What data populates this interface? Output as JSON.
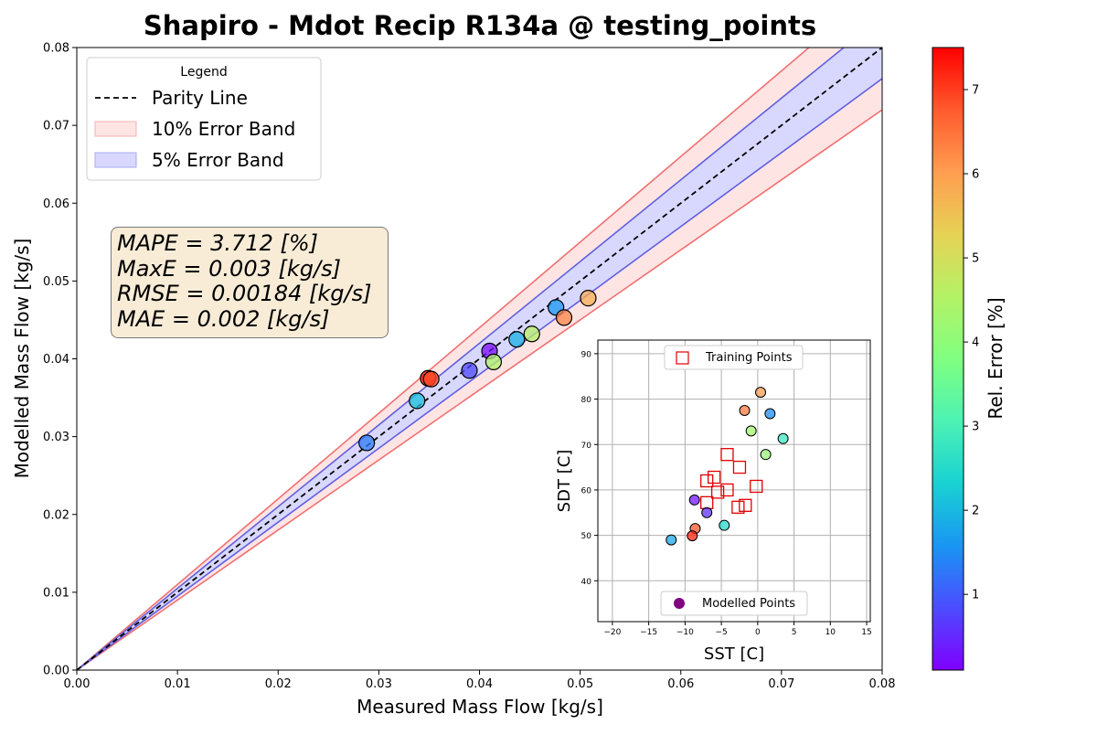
{
  "chart_data": [
    {
      "type": "scatter",
      "title": "Shapiro - Mdot Recip R134a @ testing_points",
      "xlabel": "Measured Mass Flow [kg/s]",
      "ylabel": "Modelled Mass Flow [kg/s]",
      "xlim": [
        0,
        0.08
      ],
      "ylim": [
        0,
        0.08
      ],
      "xticks": [
        "0.00",
        "0.01",
        "0.02",
        "0.03",
        "0.04",
        "0.05",
        "0.06",
        "0.07",
        "0.08"
      ],
      "yticks": [
        "0.00",
        "0.01",
        "0.02",
        "0.03",
        "0.04",
        "0.05",
        "0.06",
        "0.07",
        "0.08"
      ],
      "grid": false,
      "legend": {
        "title": "Legend",
        "placement": "top-left",
        "entries": [
          "Parity Line",
          "10% Error Band",
          "5% Error Band"
        ]
      },
      "bands": [
        {
          "name": "10% Error Band",
          "fraction": 0.1,
          "fill": "#ffe4e4",
          "edge": "#f07070"
        },
        {
          "name": "5% Error Band",
          "fraction": 0.05,
          "fill": "#d8d8ff",
          "edge": "#6060e0"
        }
      ],
      "stats": [
        "MAPE = 3.712 [%]",
        "MaxE = 0.003 [kg/s]",
        "RMSE = 0.00184 [kg/s]",
        "MAE = 0.002 [kg/s]"
      ],
      "points": [
        {
          "x": 0.0288,
          "y": 0.0292,
          "error": 1.3
        },
        {
          "x": 0.0338,
          "y": 0.0346,
          "error": 2.1
        },
        {
          "x": 0.0349,
          "y": 0.0375,
          "error": 7.4
        },
        {
          "x": 0.0352,
          "y": 0.0374,
          "error": 6.9
        },
        {
          "x": 0.039,
          "y": 0.0385,
          "error": 0.8
        },
        {
          "x": 0.041,
          "y": 0.041,
          "error": 0.2
        },
        {
          "x": 0.0414,
          "y": 0.0396,
          "error": 4.5
        },
        {
          "x": 0.0437,
          "y": 0.0425,
          "error": 1.9
        },
        {
          "x": 0.0452,
          "y": 0.0432,
          "error": 4.6
        },
        {
          "x": 0.0476,
          "y": 0.0466,
          "error": 1.6
        },
        {
          "x": 0.0484,
          "y": 0.0453,
          "error": 6.3
        },
        {
          "x": 0.0508,
          "y": 0.0478,
          "error": 5.8
        }
      ]
    },
    {
      "type": "scatter",
      "xlabel": "SST [C]",
      "ylabel": "SDT [C]",
      "xlim": [
        -22,
        15.5
      ],
      "ylim": [
        31,
        93
      ],
      "xticks": [
        -20,
        -15,
        -10,
        -5,
        0,
        5,
        10,
        15
      ],
      "yticks": [
        40,
        50,
        60,
        70,
        80,
        90
      ],
      "grid": true,
      "legend_top": "Training Points",
      "legend_bottom": "Modelled Points",
      "training_points": [
        {
          "x": -4.2,
          "y": 67.8
        },
        {
          "x": -2.5,
          "y": 65.0
        },
        {
          "x": -6.0,
          "y": 62.8
        },
        {
          "x": -7.0,
          "y": 62.0
        },
        {
          "x": -5.5,
          "y": 59.5
        },
        {
          "x": -4.2,
          "y": 60.0
        },
        {
          "x": -0.2,
          "y": 60.8
        },
        {
          "x": -7.0,
          "y": 57.2
        },
        {
          "x": -1.7,
          "y": 56.6
        },
        {
          "x": -2.7,
          "y": 56.2
        }
      ],
      "modelled_points": [
        {
          "x": 0.4,
          "y": 81.5,
          "error": 6.0
        },
        {
          "x": -1.8,
          "y": 77.5,
          "error": 6.4
        },
        {
          "x": 1.7,
          "y": 76.8,
          "error": 1.5
        },
        {
          "x": -0.9,
          "y": 73.0,
          "error": 4.3
        },
        {
          "x": 3.5,
          "y": 71.3,
          "error": 2.8
        },
        {
          "x": 1.1,
          "y": 67.8,
          "error": 4.1
        },
        {
          "x": -8.7,
          "y": 57.8,
          "error": 0.3
        },
        {
          "x": -7.0,
          "y": 55.0,
          "error": 0.6
        },
        {
          "x": -4.6,
          "y": 52.2,
          "error": 2.5
        },
        {
          "x": -8.6,
          "y": 51.5,
          "error": 6.8
        },
        {
          "x": -9.0,
          "y": 49.9,
          "error": 7.2
        },
        {
          "x": -11.9,
          "y": 49.0,
          "error": 1.8
        }
      ]
    },
    {
      "type": "colorbar",
      "label": "Rel. Error [%]",
      "range": [
        0.1,
        7.5
      ],
      "ticks": [
        1,
        2,
        3,
        4,
        5,
        6,
        7
      ],
      "colormap": [
        "#8000ff",
        "#4c4cff",
        "#1996f3",
        "#19d2d2",
        "#4cf2b4",
        "#80ff80",
        "#b4f266",
        "#e6d255",
        "#ff9d50",
        "#ff5a2d",
        "#ff0000"
      ]
    }
  ]
}
